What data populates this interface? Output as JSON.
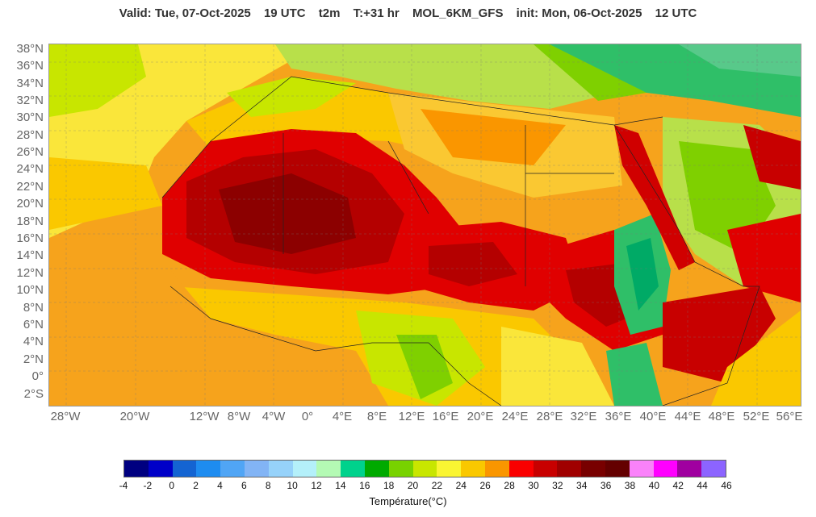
{
  "header": {
    "valid": "Valid: Tue, 07-Oct-2025",
    "hour": "19 UTC",
    "param": "t2m",
    "lead": "T:+31 hr",
    "model": "MOL_6KM_GFS",
    "init": "init: Mon, 06-Oct-2025",
    "init_hour": "12 UTC"
  },
  "map": {
    "lat_labels": [
      "38°N",
      "36°N",
      "34°N",
      "32°N",
      "30°N",
      "28°N",
      "26°N",
      "24°N",
      "22°N",
      "20°N",
      "18°N",
      "16°N",
      "14°N",
      "12°N",
      "10°N",
      "8°N",
      "6°N",
      "4°N",
      "2°N",
      "0°",
      "2°S"
    ],
    "lon_labels": [
      "28°W",
      "20°W",
      "12°W",
      "8°W",
      "4°W",
      "0°",
      "4°E",
      "8°E",
      "12°E",
      "16°E",
      "20°E",
      "24°E",
      "28°E",
      "32°E",
      "36°E",
      "40°E",
      "44°E",
      "48°E",
      "52°E",
      "56°E"
    ]
  },
  "colorbar": {
    "colors": [
      "#000080",
      "#0000c8",
      "#1464d2",
      "#1e8cf0",
      "#50a5f5",
      "#82b4f5",
      "#96d2fa",
      "#b4f0fa",
      "#b4fab4",
      "#00d28c",
      "#00aa00",
      "#78d200",
      "#c8e600",
      "#faf532",
      "#fac800",
      "#fa9600",
      "#fa0000",
      "#c80000",
      "#a00000",
      "#780000",
      "#640000",
      "#fa82fa",
      "#ff00ff",
      "#a000a0",
      "#8c64ff"
    ],
    "ticks": [
      "-4",
      "-2",
      "0",
      "2",
      "4",
      "6",
      "8",
      "10",
      "12",
      "14",
      "16",
      "18",
      "20",
      "22",
      "24",
      "26",
      "28",
      "30",
      "32",
      "34",
      "36",
      "38",
      "40",
      "42",
      "44",
      "46"
    ],
    "label": "Température(°C)"
  }
}
